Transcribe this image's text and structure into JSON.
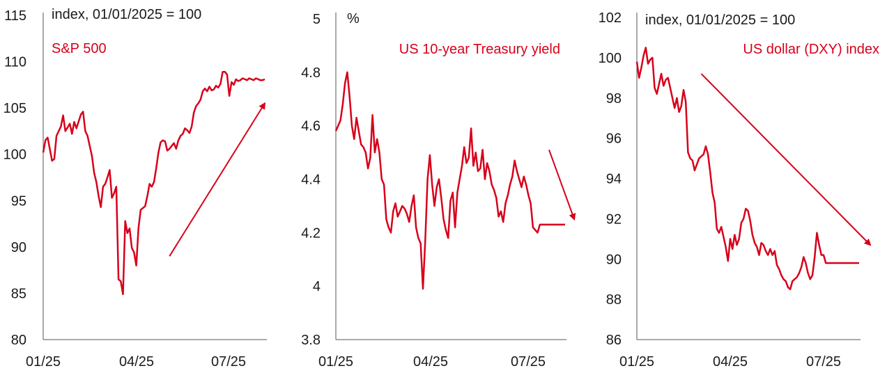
{
  "series_color": "#d7001a",
  "text_color": "#1a1a1a",
  "chart_data": [
    {
      "type": "line",
      "unit_label": "index, 01/01/2025 = 100",
      "series_label": "S&P 500",
      "ylim": [
        80,
        115
      ],
      "yticks": [
        "80",
        "85",
        "90",
        "95",
        "100",
        "105",
        "110",
        "115"
      ],
      "xticks": [
        "01/25",
        "04/25",
        "07/25"
      ],
      "trend_arrow": {
        "from": [
          0.57,
          89
        ],
        "to": [
          1.0,
          105.5
        ]
      },
      "series": [
        {
          "name": "S&P 500",
          "x": [
            0,
            0.01,
            0.02,
            0.04,
            0.05,
            0.06,
            0.08,
            0.09,
            0.1,
            0.12,
            0.13,
            0.14,
            0.15,
            0.17,
            0.18,
            0.19,
            0.2,
            0.22,
            0.23,
            0.24,
            0.25,
            0.26,
            0.27,
            0.28,
            0.29,
            0.3,
            0.31,
            0.32,
            0.33,
            0.34,
            0.35,
            0.36,
            0.37,
            0.38,
            0.39,
            0.4,
            0.41,
            0.42,
            0.43,
            0.44,
            0.45,
            0.46,
            0.47,
            0.48,
            0.49,
            0.5,
            0.51,
            0.52,
            0.53,
            0.54,
            0.55,
            0.56,
            0.57,
            0.58,
            0.59,
            0.6,
            0.61,
            0.62,
            0.63,
            0.64,
            0.65,
            0.66,
            0.67,
            0.68,
            0.69,
            0.7,
            0.71,
            0.72,
            0.73,
            0.74,
            0.75,
            0.76,
            0.77,
            0.78,
            0.79,
            0.8,
            0.81,
            0.82,
            0.83,
            0.84,
            0.85,
            0.86,
            0.87,
            0.88,
            0.89,
            0.9,
            0.91,
            0.92,
            0.93,
            0.94,
            0.95,
            0.96,
            0.97,
            0.98,
            0.99,
            1.0
          ],
          "values": [
            100.2,
            101.5,
            101.8,
            99.3,
            99.5,
            102.0,
            103.0,
            104.2,
            102.5,
            103.3,
            102.2,
            103.5,
            102.8,
            104.3,
            104.6,
            102.5,
            102.0,
            99.8,
            98.0,
            97.0,
            95.5,
            94.3,
            96.5,
            96.8,
            97.5,
            98.3,
            95.3,
            95.8,
            96.5,
            86.5,
            86.3,
            84.9,
            92.8,
            91.5,
            92.0,
            89.9,
            89.4,
            88.0,
            92.0,
            94.0,
            94.2,
            94.4,
            95.5,
            96.8,
            96.5,
            97.0,
            98.5,
            100.2,
            101.3,
            101.5,
            101.4,
            100.4,
            100.6,
            100.9,
            101.2,
            100.6,
            101.5,
            102.0,
            102.2,
            102.8,
            102.6,
            102.3,
            103.0,
            104.5,
            105.2,
            105.5,
            105.9,
            106.8,
            107.1,
            106.8,
            107.3,
            106.9,
            107.0,
            107.4,
            107.2,
            107.6,
            108.9,
            108.9,
            108.6,
            106.3,
            107.8,
            107.5,
            108.1,
            107.9,
            108.0,
            108.2,
            108.1,
            108.0,
            108.2,
            108.1,
            108.0,
            108.2,
            108.1,
            108.0,
            108.0,
            108.1
          ]
        }
      ]
    },
    {
      "type": "line",
      "unit_label": "%",
      "series_label": "US 10-year Treasury yield",
      "ylim": [
        3.8,
        5
      ],
      "yticks": [
        "3.8",
        "4",
        "4.2",
        "4.4",
        "4.6",
        "4.8",
        "5"
      ],
      "xticks": [
        "01/25",
        "04/25",
        "07/25"
      ],
      "trend_arrow": {
        "from": [
          0.93,
          4.51
        ],
        "to": [
          1.04,
          4.25
        ]
      },
      "series": [
        {
          "name": "US 10-year Treasury yield",
          "x": [
            0,
            0.02,
            0.03,
            0.04,
            0.05,
            0.06,
            0.07,
            0.08,
            0.09,
            0.1,
            0.11,
            0.12,
            0.13,
            0.14,
            0.15,
            0.16,
            0.17,
            0.18,
            0.19,
            0.2,
            0.21,
            0.22,
            0.23,
            0.24,
            0.25,
            0.26,
            0.27,
            0.28,
            0.29,
            0.3,
            0.31,
            0.32,
            0.33,
            0.34,
            0.35,
            0.36,
            0.37,
            0.38,
            0.39,
            0.4,
            0.41,
            0.42,
            0.43,
            0.44,
            0.45,
            0.46,
            0.47,
            0.48,
            0.49,
            0.5,
            0.51,
            0.52,
            0.53,
            0.54,
            0.55,
            0.56,
            0.57,
            0.58,
            0.59,
            0.6,
            0.61,
            0.62,
            0.63,
            0.64,
            0.65,
            0.66,
            0.67,
            0.68,
            0.69,
            0.7,
            0.71,
            0.72,
            0.73,
            0.74,
            0.75,
            0.76,
            0.77,
            0.78,
            0.79,
            0.8,
            0.81,
            0.82,
            0.83,
            0.84,
            0.85,
            0.86,
            0.87,
            0.88,
            0.89,
            0.9,
            0.91,
            0.92,
            0.93,
            0.94,
            0.95,
            0.96,
            0.97,
            0.98,
            0.99,
            1.0
          ],
          "values": [
            4.58,
            4.62,
            4.68,
            4.76,
            4.8,
            4.71,
            4.6,
            4.55,
            4.63,
            4.58,
            4.53,
            4.52,
            4.5,
            4.44,
            4.48,
            4.64,
            4.5,
            4.55,
            4.5,
            4.4,
            4.38,
            4.25,
            4.22,
            4.2,
            4.28,
            4.31,
            4.26,
            4.28,
            4.3,
            4.29,
            4.27,
            4.24,
            4.3,
            4.34,
            4.22,
            4.18,
            4.16,
            3.99,
            4.17,
            4.4,
            4.49,
            4.38,
            4.3,
            4.37,
            4.4,
            4.33,
            4.25,
            4.21,
            4.18,
            4.32,
            4.35,
            4.22,
            4.35,
            4.4,
            4.45,
            4.52,
            4.46,
            4.48,
            4.59,
            4.45,
            4.5,
            4.43,
            4.44,
            4.51,
            4.4,
            4.46,
            4.43,
            4.38,
            4.36,
            4.33,
            4.26,
            4.28,
            4.24,
            4.31,
            4.34,
            4.38,
            4.41,
            4.47,
            4.43,
            4.4,
            4.37,
            4.41,
            4.38,
            4.34,
            4.31,
            4.22,
            4.21,
            4.2,
            4.23,
            4.23,
            4.23,
            4.23,
            4.23,
            4.23,
            4.23,
            4.23,
            4.23,
            4.23,
            4.23,
            4.23
          ]
        }
      ]
    },
    {
      "type": "line",
      "unit_label": "index, 01/01/2025 = 100",
      "series_label": "US dollar (DXY) index",
      "ylim": [
        86,
        102
      ],
      "yticks": [
        "86",
        "88",
        "90",
        "92",
        "94",
        "96",
        "98",
        "100",
        "102"
      ],
      "xticks": [
        "01/25",
        "04/25",
        "07/25"
      ],
      "trend_arrow": {
        "from": [
          0.29,
          99.2
        ],
        "to": [
          1.05,
          90.7
        ]
      },
      "series": [
        {
          "name": "US dollar (DXY) index",
          "x": [
            0,
            0.01,
            0.02,
            0.03,
            0.04,
            0.05,
            0.06,
            0.07,
            0.08,
            0.09,
            0.1,
            0.11,
            0.12,
            0.13,
            0.14,
            0.15,
            0.16,
            0.17,
            0.18,
            0.19,
            0.2,
            0.21,
            0.22,
            0.23,
            0.24,
            0.25,
            0.26,
            0.27,
            0.28,
            0.29,
            0.3,
            0.31,
            0.32,
            0.33,
            0.34,
            0.35,
            0.36,
            0.37,
            0.38,
            0.39,
            0.4,
            0.41,
            0.42,
            0.43,
            0.44,
            0.45,
            0.46,
            0.47,
            0.48,
            0.49,
            0.5,
            0.51,
            0.52,
            0.53,
            0.54,
            0.55,
            0.56,
            0.57,
            0.58,
            0.59,
            0.6,
            0.61,
            0.62,
            0.63,
            0.64,
            0.65,
            0.66,
            0.67,
            0.68,
            0.69,
            0.7,
            0.71,
            0.72,
            0.73,
            0.74,
            0.75,
            0.76,
            0.77,
            0.78,
            0.79,
            0.8,
            0.81,
            0.82,
            0.83,
            0.84,
            0.85,
            0.86,
            0.87,
            0.88,
            0.89,
            0.9,
            0.91,
            0.92,
            0.93,
            0.94,
            0.95,
            0.96,
            0.97,
            0.98,
            0.99,
            1.0
          ],
          "values": [
            99.8,
            99.0,
            99.5,
            100.1,
            100.5,
            99.7,
            99.9,
            100.0,
            98.5,
            98.2,
            98.7,
            99.2,
            98.6,
            98.9,
            99.0,
            98.5,
            98.0,
            97.5,
            98.0,
            97.3,
            97.6,
            98.4,
            97.8,
            95.3,
            95.0,
            94.9,
            94.4,
            94.7,
            95.0,
            95.1,
            95.2,
            95.6,
            95.2,
            94.3,
            93.3,
            92.8,
            91.5,
            91.3,
            91.6,
            91.1,
            90.6,
            89.9,
            91.0,
            90.5,
            91.2,
            90.7,
            91.0,
            91.8,
            92.0,
            92.5,
            92.4,
            91.9,
            91.2,
            90.8,
            90.6,
            90.2,
            90.8,
            90.7,
            90.4,
            90.2,
            90.5,
            90.2,
            90.4,
            89.7,
            89.5,
            89.2,
            89.0,
            88.9,
            88.6,
            88.5,
            88.9,
            89.0,
            89.1,
            89.3,
            89.6,
            90.1,
            89.8,
            89.3,
            89.0,
            89.2,
            90.1,
            91.3,
            90.7,
            90.2,
            90.2,
            89.8,
            89.8,
            89.8,
            89.8,
            89.8,
            89.8,
            89.8,
            89.8,
            89.8,
            89.8,
            89.8,
            89.8,
            89.8,
            89.8,
            89.8,
            89.8
          ]
        }
      ]
    }
  ]
}
